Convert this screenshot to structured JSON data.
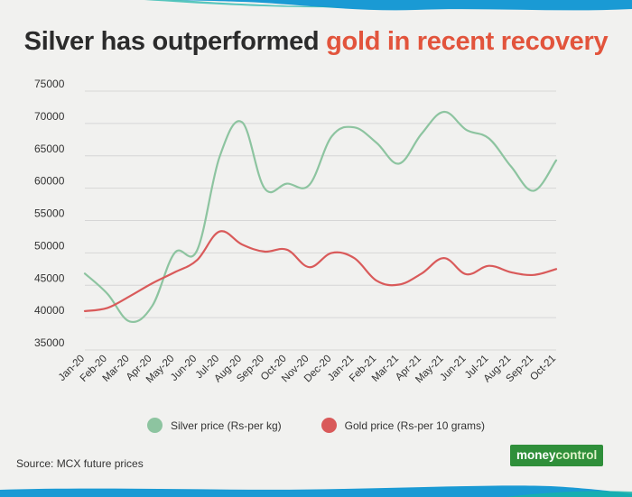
{
  "title": {
    "part1": "Silver has outperformed",
    "part2": "gold in recent recovery"
  },
  "source": "Source: MCX future prices",
  "logo": {
    "part1": "money",
    "part2": "control"
  },
  "colors": {
    "title_dark": "#2b2b2b",
    "title_accent": "#e2543c",
    "silver": "#8dc4a0",
    "gold": "#d95a5a",
    "grid": "#d6d6d6",
    "wave": "#1a9ad4",
    "logo_bg": "#2f8f3a"
  },
  "chart_data": {
    "type": "line",
    "categories": [
      "Jan-20",
      "Feb-20",
      "Mar-20",
      "Apr-20",
      "May-20",
      "Jun-20",
      "Jul-20",
      "Aug-20",
      "Sep-20",
      "Oct-20",
      "Nov-20",
      "Dec-20",
      "Jan-21",
      "Feb-21",
      "Mar-21",
      "Apr-21",
      "May-21",
      "Jun-21",
      "Jul-21",
      "Aug-21",
      "Sep-21",
      "Oct-21"
    ],
    "series": [
      {
        "name": "Silver price (Rs-per kg)",
        "color": "#8dc4a0",
        "values": [
          46800,
          43700,
          39400,
          41800,
          50000,
          50400,
          64800,
          70200,
          60000,
          60700,
          60500,
          68000,
          69400,
          67000,
          63800,
          68400,
          71800,
          69000,
          67700,
          63300,
          59600,
          64300
        ]
      },
      {
        "name": "Gold price (Rs-per 10 grams)",
        "color": "#d95a5a",
        "values": [
          41000,
          41500,
          43300,
          45300,
          47000,
          48900,
          53300,
          51300,
          50200,
          50500,
          47800,
          50000,
          49200,
          45700,
          45100,
          46800,
          49200,
          46700,
          48000,
          47000,
          46600,
          47500
        ]
      }
    ],
    "yticks": [
      35000,
      40000,
      45000,
      50000,
      55000,
      60000,
      65000,
      70000,
      75000
    ],
    "ylim": [
      35000,
      75000
    ],
    "grid": true,
    "legend_position": "bottom"
  }
}
